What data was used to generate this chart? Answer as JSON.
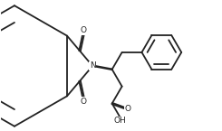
{
  "bg_color": "#ffffff",
  "line_color": "#222222",
  "lw": 1.3,
  "figsize": [
    2.45,
    1.45
  ],
  "dpi": 100,
  "xlim": [
    0.0,
    2.45
  ],
  "ylim": [
    0.0,
    1.45
  ]
}
